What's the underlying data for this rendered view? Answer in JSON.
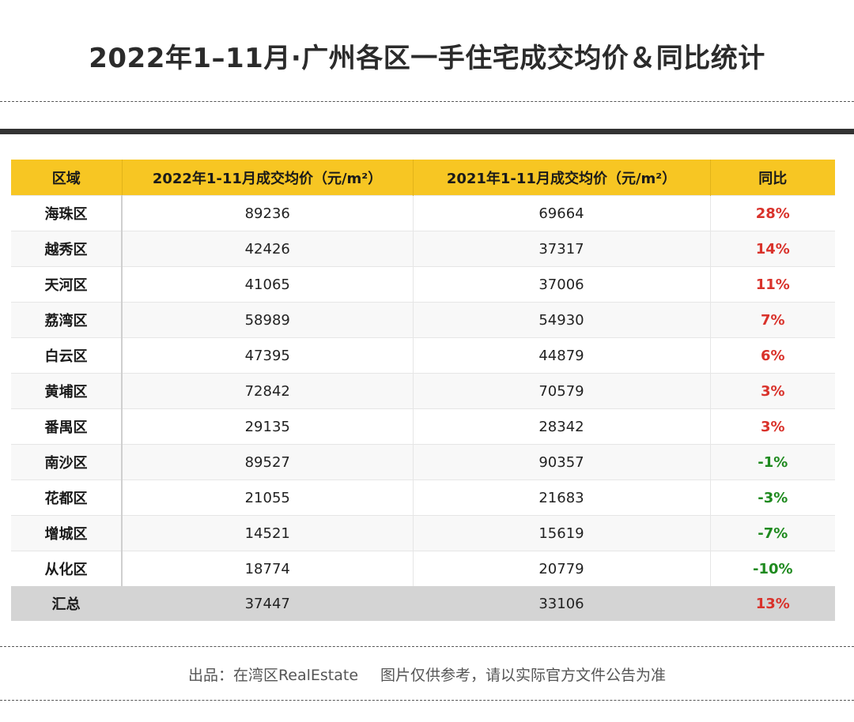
{
  "title": "2022年1–11月·广州各区一手住宅成交均价＆同比统计",
  "footer": {
    "source": "出品：在湾区RealEstate",
    "disclaimer": "图片仅供参考，请以实际官方文件公告为准"
  },
  "colors": {
    "header_bg": "#f7c623",
    "increase": "#d9322b",
    "decrease": "#1f8a1f",
    "total_bg": "#d4d4d4"
  },
  "chart_data": {
    "type": "table",
    "columns": [
      "区域",
      "2022年1-11月成交均价（元/m²）",
      "2021年1-11月成交均价（元/m²）",
      "同比"
    ],
    "rows": [
      {
        "district": "海珠区",
        "price_2022": "89236",
        "price_2021": "69664",
        "yoy": "28%",
        "trend": "up"
      },
      {
        "district": "越秀区",
        "price_2022": "42426",
        "price_2021": "37317",
        "yoy": "14%",
        "trend": "up"
      },
      {
        "district": "天河区",
        "price_2022": "41065",
        "price_2021": "37006",
        "yoy": "11%",
        "trend": "up"
      },
      {
        "district": "荔湾区",
        "price_2022": "58989",
        "price_2021": "54930",
        "yoy": "7%",
        "trend": "up"
      },
      {
        "district": "白云区",
        "price_2022": "47395",
        "price_2021": "44879",
        "yoy": "6%",
        "trend": "up"
      },
      {
        "district": "黄埔区",
        "price_2022": "72842",
        "price_2021": "70579",
        "yoy": "3%",
        "trend": "up"
      },
      {
        "district": "番禺区",
        "price_2022": "29135",
        "price_2021": "28342",
        "yoy": "3%",
        "trend": "up"
      },
      {
        "district": "南沙区",
        "price_2022": "89527",
        "price_2021": "90357",
        "yoy": "-1%",
        "trend": "down"
      },
      {
        "district": "花都区",
        "price_2022": "21055",
        "price_2021": "21683",
        "yoy": "-3%",
        "trend": "down"
      },
      {
        "district": "增城区",
        "price_2022": "14521",
        "price_2021": "15619",
        "yoy": "-7%",
        "trend": "down"
      },
      {
        "district": "从化区",
        "price_2022": "18774",
        "price_2021": "20779",
        "yoy": "-10%",
        "trend": "down"
      }
    ],
    "total": {
      "district": "汇总",
      "price_2022": "37447",
      "price_2021": "33106",
      "yoy": "13%",
      "trend": "up"
    }
  }
}
